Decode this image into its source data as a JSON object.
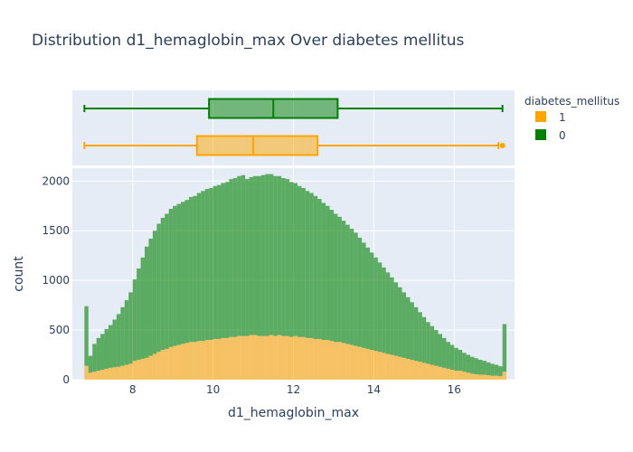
{
  "chart_data": {
    "type": "bar",
    "title": "Distribution d1_hemaglobin_max Over diabetes mellitus",
    "xlabel": "d1_hemaglobin_max",
    "ylabel": "count",
    "xlim": [
      6.5,
      17.5
    ],
    "ylim": [
      0,
      2130
    ],
    "x_ticks": [
      8,
      10,
      12,
      14,
      16
    ],
    "y_ticks": [
      0,
      500,
      1000,
      1500,
      2000
    ],
    "barmode": "stacked",
    "grid": true,
    "legend": {
      "title": "diabetes_mellitus",
      "position": "top-right"
    },
    "bins": {
      "start": 6.8,
      "width": 0.1
    },
    "series": [
      {
        "name": "1",
        "color": "#ffa500",
        "values": [
          140,
          70,
          80,
          90,
          100,
          110,
          120,
          125,
          130,
          140,
          150,
          160,
          190,
          200,
          210,
          220,
          240,
          260,
          280,
          300,
          310,
          330,
          340,
          350,
          360,
          370,
          380,
          380,
          390,
          390,
          400,
          400,
          410,
          410,
          420,
          420,
          430,
          430,
          440,
          440,
          440,
          450,
          450,
          440,
          440,
          440,
          450,
          440,
          450,
          440,
          440,
          430,
          440,
          430,
          430,
          420,
          420,
          410,
          410,
          400,
          400,
          390,
          380,
          380,
          370,
          360,
          350,
          340,
          330,
          320,
          310,
          300,
          290,
          280,
          270,
          260,
          250,
          240,
          230,
          220,
          210,
          200,
          190,
          180,
          170,
          160,
          150,
          140,
          130,
          120,
          110,
          100,
          90,
          90,
          80,
          70,
          60,
          55,
          50,
          50,
          45,
          40,
          40,
          35,
          80
        ]
      },
      {
        "name": "0",
        "color": "#008000",
        "values": [
          600,
          170,
          280,
          330,
          360,
          400,
          430,
          480,
          530,
          590,
          650,
          720,
          820,
          920,
          1020,
          1120,
          1180,
          1240,
          1290,
          1330,
          1360,
          1390,
          1410,
          1420,
          1430,
          1440,
          1460,
          1470,
          1490,
          1510,
          1520,
          1530,
          1540,
          1550,
          1560,
          1570,
          1590,
          1600,
          1610,
          1620,
          1580,
          1590,
          1600,
          1610,
          1620,
          1630,
          1620,
          1610,
          1600,
          1590,
          1580,
          1560,
          1540,
          1520,
          1500,
          1480,
          1460,
          1440,
          1410,
          1380,
          1350,
          1320,
          1290,
          1260,
          1230,
          1200,
          1170,
          1140,
          1100,
          1060,
          1020,
          980,
          940,
          900,
          860,
          820,
          780,
          740,
          700,
          660,
          620,
          580,
          540,
          500,
          460,
          420,
          390,
          360,
          330,
          300,
          270,
          250,
          230,
          210,
          190,
          180,
          170,
          160,
          150,
          140,
          130,
          120,
          110,
          100,
          480
        ]
      }
    ],
    "box_plot": [
      {
        "name": "0",
        "color": "#008000",
        "min": 6.8,
        "q1": 9.9,
        "median": 11.5,
        "q3": 13.1,
        "max": 17.2
      },
      {
        "name": "1",
        "color": "#ffa500",
        "min": 6.8,
        "q1": 9.6,
        "median": 11.0,
        "q3": 12.6,
        "max": 17.1,
        "outliers": [
          17.2
        ]
      }
    ]
  }
}
